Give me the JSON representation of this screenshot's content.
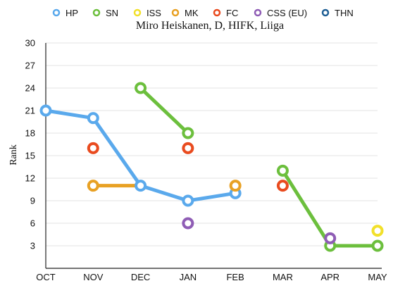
{
  "chart_data": {
    "type": "line",
    "title": "Miro Heiskanen, D, HIFK, Liiga",
    "ylabel": "Rank",
    "xlabel": "",
    "categories": [
      "OCT",
      "NOV",
      "DEC",
      "JAN",
      "FEB",
      "MAR",
      "APR",
      "MAY"
    ],
    "yticks": [
      3,
      6,
      9,
      12,
      15,
      18,
      21,
      24,
      27,
      30
    ],
    "ylim": [
      0,
      30
    ],
    "y_inverted": false,
    "grid": true,
    "legend_position": "top",
    "series": [
      {
        "name": "HP",
        "color": "#5aa9ec",
        "points": [
          {
            "x": "OCT",
            "y": 21
          },
          {
            "x": "NOV",
            "y": 20
          },
          {
            "x": "DEC",
            "y": 11
          },
          {
            "x": "JAN",
            "y": 9
          },
          {
            "x": "FEB",
            "y": 10
          }
        ],
        "segments": [
          [
            "OCT",
            "NOV",
            "DEC",
            "JAN",
            "FEB"
          ]
        ]
      },
      {
        "name": "SN",
        "color": "#6cbf3d",
        "points": [
          {
            "x": "DEC",
            "y": 24
          },
          {
            "x": "JAN",
            "y": 18
          },
          {
            "x": "MAR",
            "y": 13
          },
          {
            "x": "APR",
            "y": 3
          },
          {
            "x": "MAY",
            "y": 3
          }
        ],
        "segments": [
          [
            "DEC",
            "JAN"
          ],
          [
            "MAR",
            "APR",
            "MAY"
          ]
        ]
      },
      {
        "name": "ISS",
        "color": "#f2e02a",
        "points": [
          {
            "x": "MAY",
            "y": 5
          }
        ],
        "segments": []
      },
      {
        "name": "MK",
        "color": "#e8a124",
        "points": [
          {
            "x": "NOV",
            "y": 11
          },
          {
            "x": "FEB",
            "y": 11
          }
        ],
        "segments": [],
        "partial_line": {
          "from": "NOV",
          "to": "DEC",
          "y": 11
        }
      },
      {
        "name": "FC",
        "color": "#e94b1f",
        "points": [
          {
            "x": "NOV",
            "y": 16
          },
          {
            "x": "JAN",
            "y": 16
          },
          {
            "x": "MAR",
            "y": 11
          }
        ],
        "segments": []
      },
      {
        "name": "CSS (EU)",
        "color": "#8f5db5",
        "points": [
          {
            "x": "JAN",
            "y": 6
          },
          {
            "x": "APR",
            "y": 4
          }
        ],
        "segments": []
      },
      {
        "name": "THN",
        "color": "#1f5f95",
        "points": [],
        "segments": []
      }
    ]
  }
}
